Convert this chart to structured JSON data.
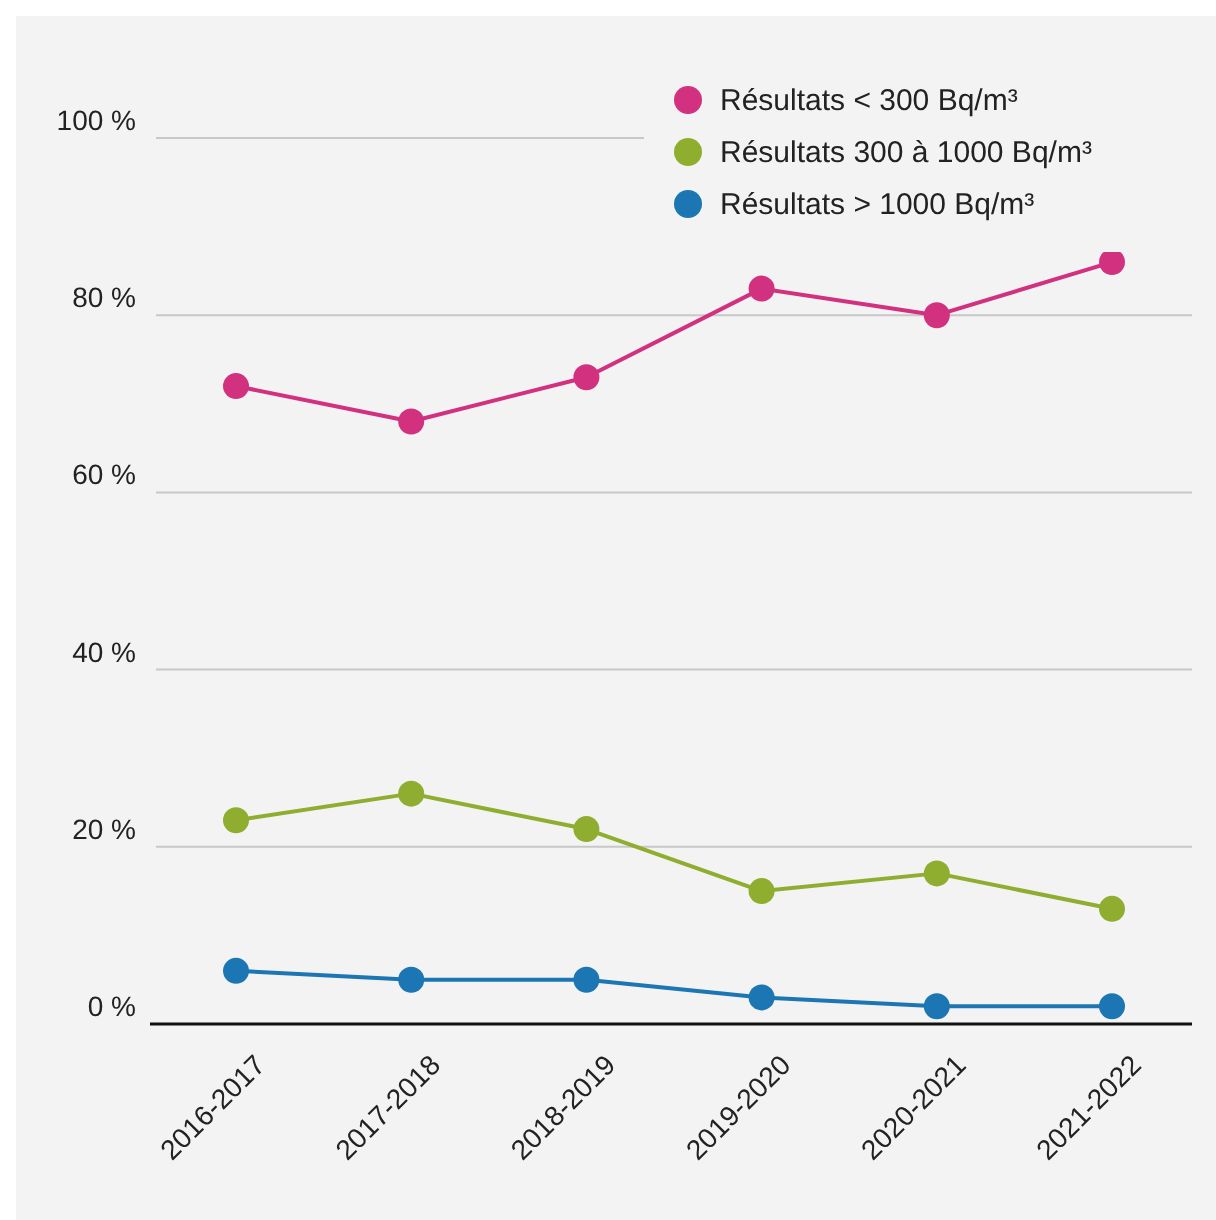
{
  "chart_data": {
    "type": "line",
    "categories": [
      "2016-2017",
      "2017-2018",
      "2018-2019",
      "2019-2020",
      "2020-2021",
      "2021-2022"
    ],
    "series": [
      {
        "name": "Résultats < 300 Bq/m³",
        "color": "#d2317f",
        "values": [
          72,
          68,
          73,
          83,
          80,
          86
        ]
      },
      {
        "name": "Résultats 300 à 1000 Bq/m³",
        "color": "#8fad2f",
        "values": [
          23,
          26,
          22,
          15,
          17,
          13
        ]
      },
      {
        "name": "Résultats > 1000 Bq/m³",
        "color": "#1b76b3",
        "values": [
          6,
          5,
          5,
          3,
          2,
          2
        ]
      }
    ],
    "ylim": [
      0,
      100
    ],
    "yticks": [
      {
        "value": 0,
        "label": "0 %"
      },
      {
        "value": 20,
        "label": "20 %"
      },
      {
        "value": 40,
        "label": "40 %"
      },
      {
        "value": 60,
        "label": "60 %"
      },
      {
        "value": 80,
        "label": "80 %"
      },
      {
        "value": 100,
        "label": "100 %"
      }
    ],
    "grid": "y",
    "legend": "top right",
    "marker": "circle",
    "line_style": "solid"
  }
}
